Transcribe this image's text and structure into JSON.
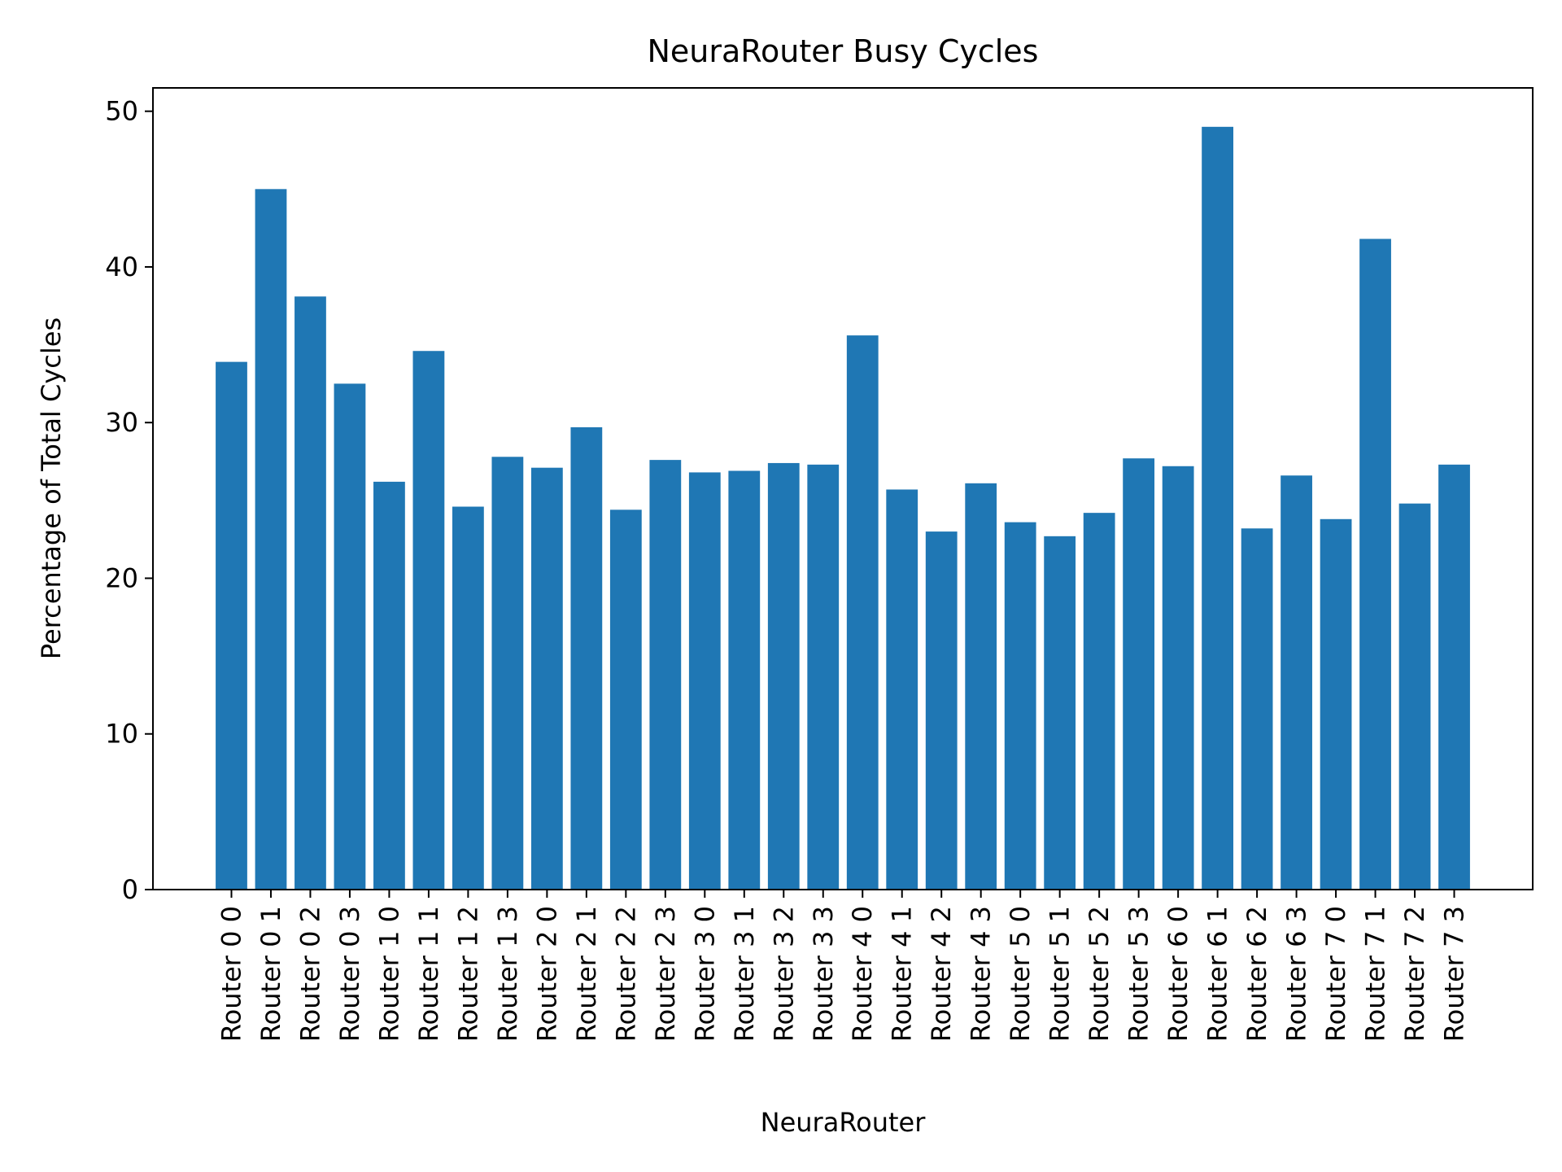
{
  "chart_data": {
    "type": "bar",
    "title": "NeuraRouter Busy Cycles",
    "xlabel": "NeuraRouter",
    "ylabel": "Percentage of Total Cycles",
    "ylim": [
      0,
      51.5
    ],
    "yticks": [
      0,
      10,
      20,
      30,
      40,
      50
    ],
    "grid": false,
    "bar_color": "#1f77b4",
    "categories": [
      "Router 0 0",
      "Router 0 1",
      "Router 0 2",
      "Router 0 3",
      "Router 1 0",
      "Router 1 1",
      "Router 1 2",
      "Router 1 3",
      "Router 2 0",
      "Router 2 1",
      "Router 2 2",
      "Router 2 3",
      "Router 3 0",
      "Router 3 1",
      "Router 3 2",
      "Router 3 3",
      "Router 4 0",
      "Router 4 1",
      "Router 4 2",
      "Router 4 3",
      "Router 5 0",
      "Router 5 1",
      "Router 5 2",
      "Router 5 3",
      "Router 6 0",
      "Router 6 1",
      "Router 6 2",
      "Router 6 3",
      "Router 7 0",
      "Router 7 1",
      "Router 7 2",
      "Router 7 3"
    ],
    "values": [
      33.9,
      45.0,
      38.1,
      32.5,
      26.2,
      34.6,
      24.6,
      27.8,
      27.1,
      29.7,
      24.4,
      27.6,
      26.8,
      26.9,
      27.4,
      27.3,
      35.6,
      25.7,
      23.0,
      26.1,
      23.6,
      22.7,
      24.2,
      27.7,
      27.2,
      49.0,
      23.2,
      26.6,
      23.8,
      41.8,
      24.8,
      27.3
    ]
  }
}
